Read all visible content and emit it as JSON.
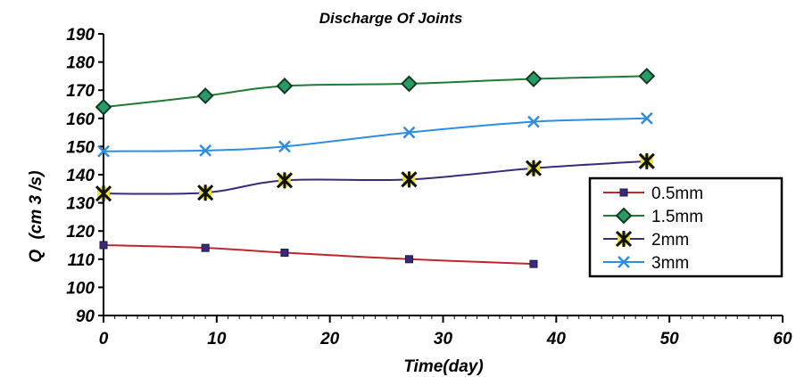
{
  "chart_data": {
    "type": "line",
    "title": "Discharge Of Joints",
    "xlabel": "Time(day)",
    "ylabel": "Q (cm3/s)",
    "xlim": [
      0,
      60
    ],
    "ylim": [
      90,
      190
    ],
    "x_ticks": [
      0,
      10,
      20,
      30,
      40,
      50,
      60
    ],
    "y_ticks": [
      90,
      100,
      110,
      120,
      130,
      140,
      150,
      160,
      170,
      180,
      190
    ],
    "grid": false,
    "legend_position": "right",
    "series": [
      {
        "name": "0.5mm",
        "color": "#c0262b",
        "marker": "square",
        "x": [
          0,
          9,
          16,
          27,
          38
        ],
        "y": [
          115,
          114,
          112.3,
          110,
          108.3
        ]
      },
      {
        "name": "1.5mm",
        "color": "#1e7a34",
        "marker": "diamond",
        "x": [
          0,
          9,
          16,
          27,
          38,
          48
        ],
        "y": [
          164,
          168,
          171.5,
          172.3,
          174,
          175
        ]
      },
      {
        "name": "2mm",
        "color": "#3a2a7a",
        "marker": "asterisk",
        "x": [
          0,
          9,
          16,
          27,
          38,
          48
        ],
        "y": [
          133.3,
          133.6,
          138,
          138.3,
          142.3,
          144.8
        ]
      },
      {
        "name": "3mm",
        "color": "#2f8de0",
        "marker": "x",
        "x": [
          0,
          9,
          16,
          27,
          38,
          48
        ],
        "y": [
          148.3,
          148.6,
          150,
          155,
          158.8,
          160
        ]
      }
    ]
  }
}
